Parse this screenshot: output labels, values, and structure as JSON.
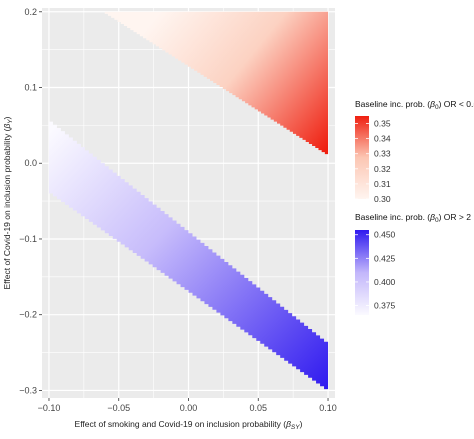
{
  "chart_data": {
    "type": "heatmap",
    "title": "",
    "xlabel": "Effect of smoking and Covid-19 on inclusion probability (β_SY)",
    "xlabel_parts": {
      "main": "Effect of smoking and Covid-19 on inclusion probability (",
      "symbol": "β",
      "sub": "SY",
      "close": ")"
    },
    "ylabel": "Effect of Covid-19 on inclusion probability (β_Y)",
    "ylabel_parts": {
      "main": "Effect of Covid-19 on inclusion probability (",
      "symbol": "β",
      "sub": "Y",
      "close": ")"
    },
    "xlim": [
      -0.105,
      0.105
    ],
    "ylim": [
      -0.31,
      0.205
    ],
    "x_ticks": [
      -0.1,
      -0.05,
      0.0,
      0.05,
      0.1
    ],
    "x_tick_labels": [
      "−0.10",
      "−0.05",
      "0.00",
      "0.05",
      "0.10"
    ],
    "y_ticks": [
      -0.3,
      -0.2,
      -0.1,
      0.0,
      0.1,
      0.2
    ],
    "y_tick_labels": [
      "−0.3",
      "−0.2",
      "−0.1",
      "0.0",
      "0.1",
      "0.2"
    ],
    "grid": true,
    "legend_placement": "right",
    "background_color": "#ebebeb",
    "grid_color": "#ffffff",
    "regions": [
      {
        "name": "Baseline inc. prob. (β0) OR < 0.5",
        "legend_title_parts": {
          "main": "Baseline inc. prob. (",
          "symbol": "β",
          "sub": "0",
          "close": ") OR < 0.5"
        },
        "x_range": [
          -0.06,
          0.1
        ],
        "top": 0.2,
        "bottom_start": [
          -0.06,
          0.2
        ],
        "bottom_end": [
          0.1,
          0.012
        ],
        "value_range": [
          0.3,
          0.355
        ],
        "legend_ticks": [
          0.3,
          0.31,
          0.32,
          0.33,
          0.34,
          0.35
        ],
        "legend_tick_labels": [
          "0.30",
          "0.31",
          "0.32",
          "0.33",
          "0.34",
          "0.35"
        ],
        "color_low": "#fff5f0",
        "color_high": "#ef1f10"
      },
      {
        "name": "Baseline inc. prob. (β0) OR > 2",
        "legend_title_parts": {
          "main": "Baseline inc. prob. (",
          "symbol": "β",
          "sub": "0",
          "close": ") OR > 2"
        },
        "x_range": [
          -0.1,
          0.1
        ],
        "top_start": [
          -0.1,
          0.055
        ],
        "top_end": [
          0.1,
          -0.24
        ],
        "bottom_start": [
          -0.1,
          -0.04
        ],
        "bottom_end": [
          0.1,
          -0.302
        ],
        "value_range": [
          0.365,
          0.455
        ],
        "legend_ticks": [
          0.375,
          0.4,
          0.425,
          0.45
        ],
        "legend_tick_labels": [
          "0.375",
          "0.400",
          "0.425",
          "0.450"
        ],
        "color_low": "#fbfaff",
        "color_high": "#2f19ef"
      }
    ]
  }
}
